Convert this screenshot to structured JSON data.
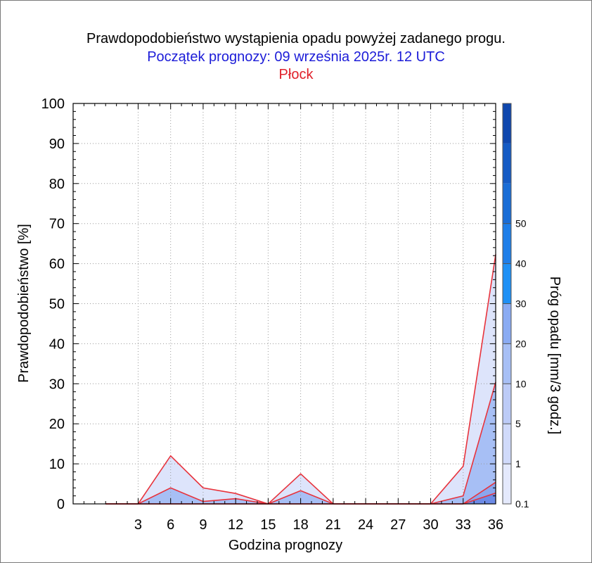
{
  "chart_data": {
    "type": "area",
    "title": "Prawdopodobieństwo wystąpienia opadu powyżej zadanego progu.",
    "subtitle": "Początek prognozy: 09 września 2025r. 12 UTC",
    "location": "Płock",
    "xlabel": "Godzina prognozy",
    "ylabel": "Prawdopodobieństwo [%]",
    "xlim": [
      -3,
      36
    ],
    "ylim": [
      0,
      100
    ],
    "x_ticks": [
      3,
      6,
      9,
      12,
      15,
      18,
      21,
      24,
      27,
      30,
      33,
      36
    ],
    "y_ticks": [
      0,
      10,
      20,
      30,
      40,
      50,
      60,
      70,
      80,
      90,
      100
    ],
    "grid": true,
    "x": [
      0,
      3,
      6,
      9,
      12,
      15,
      18,
      21,
      24,
      27,
      30,
      33,
      36
    ],
    "series": [
      {
        "threshold": 0.1,
        "color": "#dde4fb",
        "values": [
          0,
          0,
          12,
          4,
          2.6,
          0,
          7.5,
          0,
          0,
          0,
          0,
          9.4,
          62.3
        ]
      },
      {
        "threshold": 1,
        "color": "#a7bff5",
        "values": [
          0,
          0,
          4,
          0.6,
          1.3,
          0,
          3.3,
          0,
          0,
          0,
          0,
          2,
          30.4
        ]
      },
      {
        "threshold": 5,
        "color": "#8aa6ee",
        "values": [
          0,
          0,
          0,
          0,
          0,
          0,
          0,
          0,
          0,
          0,
          0,
          0,
          5.4
        ]
      },
      {
        "threshold": 10,
        "color": "#6d8be6",
        "values": [
          0,
          0,
          0,
          0,
          0,
          0,
          0,
          0,
          0,
          0,
          0,
          0,
          2.7
        ]
      }
    ],
    "colorbar": {
      "title": "Próg opadu [mm/3 godz.]",
      "labels": [
        "0.1",
        "1",
        "5",
        "10",
        "20",
        "30",
        "40",
        "50"
      ],
      "colors": [
        "#e4e9fc",
        "#d0dafa",
        "#bccbf7",
        "#a7bff5",
        "#8aabf3",
        "#1e90f5",
        "#1e7ee8",
        "#1a6dd6",
        "#155bc4",
        "#0f47ae"
      ]
    },
    "line_color": "#e8333c"
  }
}
